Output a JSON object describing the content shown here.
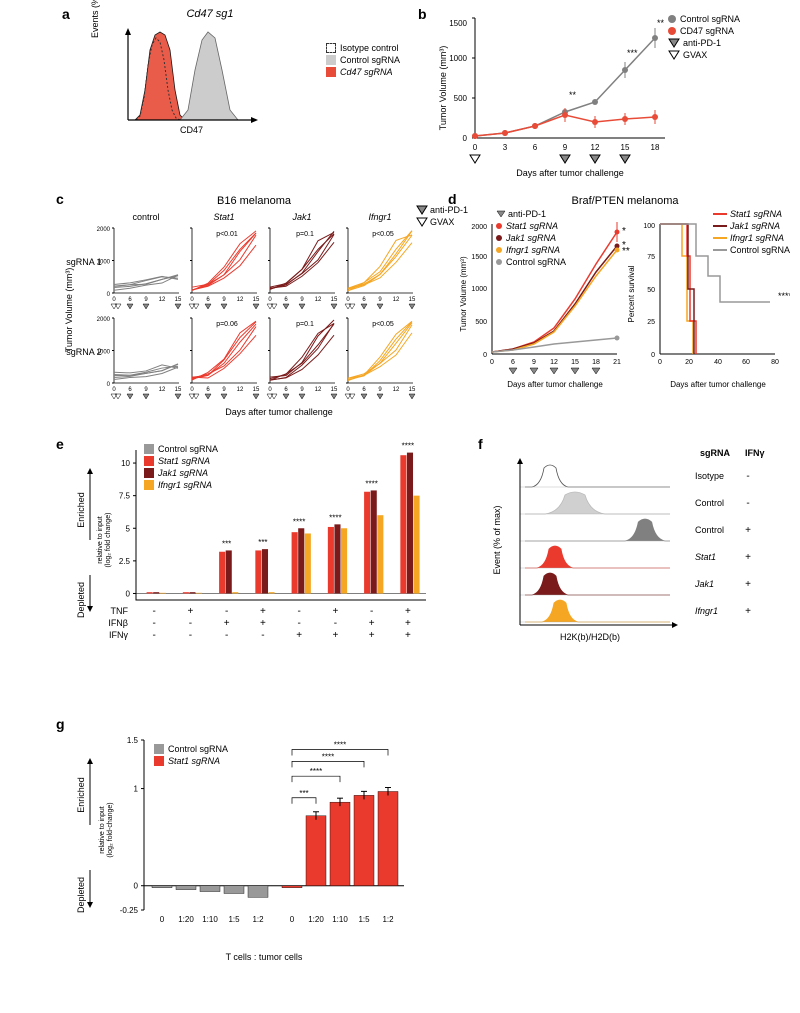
{
  "colors": {
    "control_gray": "#808080",
    "cd47_red": "#e84b37",
    "stat1_red": "#ea3a2e",
    "jak1_dark": "#7a1a1a",
    "ifngr1_orange": "#f5a623",
    "light_gray": "#cccccc",
    "isotype": "#333333",
    "bg": "#ffffff"
  },
  "panel_a": {
    "label": "a",
    "title": "Cd47 sg1",
    "xlabel": "CD47",
    "ylabel": "Events (% of max)",
    "legend": [
      "Isotype control",
      "Control sgRNA",
      "Cd47 sgRNA"
    ],
    "legend_colors": [
      "#ffffff",
      "#cccccc",
      "#e84b37"
    ]
  },
  "panel_b": {
    "label": "b",
    "ylabel": "Tumor Volume (mm³)",
    "xlabel": "Days after tumor challenge",
    "ylim": [
      0,
      1500
    ],
    "yticks": [
      0,
      500,
      1000,
      1500
    ],
    "xticks": [
      0,
      3,
      6,
      9,
      12,
      15,
      18
    ],
    "legend": [
      "Control sgRNA",
      "CD47 sgRNA",
      "anti-PD-1",
      "GVAX"
    ],
    "control_vals": [
      20,
      60,
      150,
      320,
      450,
      850,
      1250
    ],
    "cd47_vals": [
      20,
      55,
      140,
      280,
      200,
      230,
      260
    ],
    "sig": {
      "9": "**",
      "15": "***",
      "18": "**"
    },
    "marker_days": {
      "gvax": [
        0
      ],
      "pd1": [
        9,
        12,
        15
      ]
    }
  },
  "panel_c": {
    "label": "c",
    "title": "B16 melanoma",
    "ylabel": "Tumor Volume (mm³)",
    "xlabel": "Days after tumor challenge",
    "ylim": [
      0,
      2000
    ],
    "yticks": [
      0,
      1000,
      2000
    ],
    "xticks": [
      0,
      6,
      9,
      12,
      15
    ],
    "rows": [
      "sgRNA 1",
      "sgRNA 2"
    ],
    "cols": [
      "control",
      "Stat1",
      "Jak1",
      "Ifngr1"
    ],
    "col_colors": [
      "#808080",
      "#ea3a2e",
      "#7a1a1a",
      "#f5a623"
    ],
    "pvals_row1": [
      "",
      "p<0.01",
      "p=0.1",
      "p<0.05"
    ],
    "pvals_row2": [
      "",
      "p=0.06",
      "p=0.1",
      "p<0.05"
    ],
    "legend": [
      "anti-PD-1",
      "GVAX"
    ],
    "marker_days": {
      "gvax": [
        0,
        3
      ],
      "pd1": [
        6,
        9,
        15
      ]
    }
  },
  "panel_d": {
    "label": "d",
    "title": "Braf/PTEN melanoma",
    "ylabel": "Tumor Volume (mm³)",
    "xlabel": "Days after tumor challenge",
    "ylim": [
      0,
      2000
    ],
    "yticks": [
      0,
      500,
      1000,
      1500,
      2000
    ],
    "xticks": [
      0,
      6,
      9,
      12,
      15,
      18,
      21
    ],
    "legend_left": [
      "anti-PD-1",
      "Stat1 sgRNA",
      "Jak1 sgRNA",
      "Ifngr1 sgRNA",
      "Control sgRNA"
    ],
    "survival_ylabel": "Percent survival",
    "survival_xlabel": "Days after tumor challenge",
    "survival_ylim": [
      0,
      100
    ],
    "survival_yticks": [
      0,
      25,
      50,
      75,
      100
    ],
    "survival_xlim": [
      0,
      80
    ],
    "survival_xticks": [
      0,
      20,
      40,
      60,
      80
    ],
    "legend_right": [
      "Stat1 sgRNA",
      "Jak1 sgRNA",
      "Ifngr1 sgRNA",
      "Control sgRNA"
    ],
    "legend_colors": [
      "#ea3a2e",
      "#7a1a1a",
      "#f5a623",
      "#999999"
    ],
    "growth_control": [
      20,
      60,
      100,
      150,
      180,
      210,
      230,
      250
    ],
    "growth_stat1": [
      20,
      80,
      200,
      400,
      700,
      1100,
      1500,
      1850
    ],
    "growth_jak1": [
      20,
      75,
      180,
      380,
      650,
      1000,
      1400,
      1650
    ],
    "growth_ifngr1": [
      20,
      70,
      170,
      350,
      600,
      950,
      1350,
      1600
    ],
    "sig_markers": [
      "*",
      "*",
      "**"
    ],
    "survival_sig": "****",
    "marker_days": {
      "pd1": [
        6,
        9,
        12,
        15,
        18
      ]
    }
  },
  "panel_e": {
    "label": "e",
    "ylabel_top": "Enriched",
    "ylabel_bot": "Depleted",
    "ylabel_sub": "relative to input\n(log₂ fold change)",
    "yticks": [
      0,
      2.5,
      5,
      7.5,
      10
    ],
    "ylim": [
      -0.5,
      11
    ],
    "legend": [
      "Control sgRNA",
      "Stat1 sgRNA",
      "Jak1 sgRNA",
      "Ifngr1 sgRNA"
    ],
    "legend_colors": [
      "#999999",
      "#ea3a2e",
      "#7a1a1a",
      "#f5a623"
    ],
    "conditions": {
      "TNF": [
        "-",
        "+",
        "-",
        "+",
        "-",
        "+",
        "-",
        "+"
      ],
      "IFNβ": [
        "-",
        "-",
        "+",
        "+",
        "-",
        "-",
        "+",
        "+"
      ],
      "IFNγ": [
        "-",
        "-",
        "-",
        "-",
        "+",
        "+",
        "+",
        "+"
      ]
    },
    "values": {
      "control": [
        0,
        0,
        0,
        0,
        0,
        0,
        0,
        0
      ],
      "stat1": [
        0.1,
        0.1,
        3.2,
        3.3,
        4.7,
        5.1,
        7.8,
        10.6
      ],
      "jak1": [
        0.1,
        0.1,
        3.3,
        3.4,
        5.0,
        5.3,
        7.9,
        10.8
      ],
      "ifngr1": [
        0.05,
        0.05,
        0.1,
        0.1,
        4.6,
        5.0,
        6.0,
        7.5
      ]
    },
    "sig": [
      "",
      "",
      "***",
      "***",
      "****",
      "****",
      "****",
      "****"
    ]
  },
  "panel_f": {
    "label": "f",
    "xlabel": "H2K(b)/H2D(b)",
    "ylabel": "Event (% of max)",
    "header": [
      "sgRNA",
      "IFNγ"
    ],
    "rows": [
      [
        "Isotype",
        "-"
      ],
      [
        "Control",
        "-"
      ],
      [
        "Control",
        "+"
      ],
      [
        "Stat1",
        "+"
      ],
      [
        "Jak1",
        "+"
      ],
      [
        "Ifngr1",
        "+"
      ]
    ],
    "row_colors": [
      "#bbbbbb",
      "#bbbbbb",
      "#808080",
      "#ea3a2e",
      "#7a1a1a",
      "#f5a623"
    ]
  },
  "panel_g": {
    "label": "g",
    "ylabel_top": "Enriched",
    "ylabel_bot": "Depleted",
    "ylabel_sub": "relative to input\n(log₂ fold-change)",
    "ylim": [
      -0.25,
      1.5
    ],
    "yticks": [
      -0.25,
      0,
      1.0,
      1.5
    ],
    "xlabel": "T cells : tumor cells",
    "xticks": [
      "0",
      "1:20",
      "1:10",
      "1:5",
      "1:2",
      "0",
      "1:20",
      "1:10",
      "1:5",
      "1:2"
    ],
    "legend": [
      "Control sgRNA",
      "Stat1 sgRNA"
    ],
    "legend_colors": [
      "#999999",
      "#ea3a2e"
    ],
    "control_vals": [
      -0.02,
      -0.04,
      -0.06,
      -0.08,
      -0.12
    ],
    "stat1_vals": [
      -0.02,
      0.72,
      0.86,
      0.93,
      0.97
    ],
    "sig": [
      "",
      "***",
      "****",
      "****",
      "****"
    ]
  }
}
